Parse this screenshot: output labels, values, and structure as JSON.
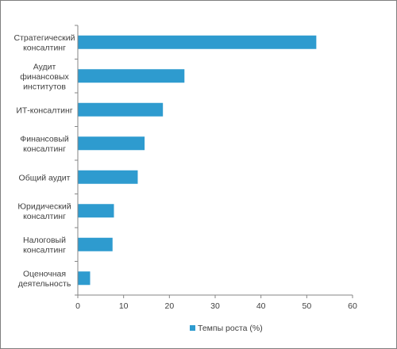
{
  "chart_data": {
    "type": "bar",
    "orientation": "horizontal",
    "categories": [
      [
        "Стратегический",
        "консалтинг"
      ],
      [
        "Аудит",
        "финансовых",
        "институтов"
      ],
      [
        "ИТ-консалтинг"
      ],
      [
        "Финансовый",
        "консалтинг"
      ],
      [
        "Общий аудит"
      ],
      [
        "Юридический",
        "консалтинг"
      ],
      [
        "Налоговый",
        "консалтинг"
      ],
      [
        "Оценочная",
        "деятельность"
      ]
    ],
    "series": [
      {
        "name": "Темпы роста (%)",
        "color": "#2e9bcf",
        "values": [
          52,
          23.2,
          18.5,
          14.5,
          13,
          7.8,
          7.5,
          2.6
        ]
      }
    ],
    "xlim": [
      0,
      60
    ],
    "xticks": [
      0,
      10,
      20,
      30,
      40,
      50,
      60
    ],
    "grid": false,
    "legend_position": "bottom"
  }
}
